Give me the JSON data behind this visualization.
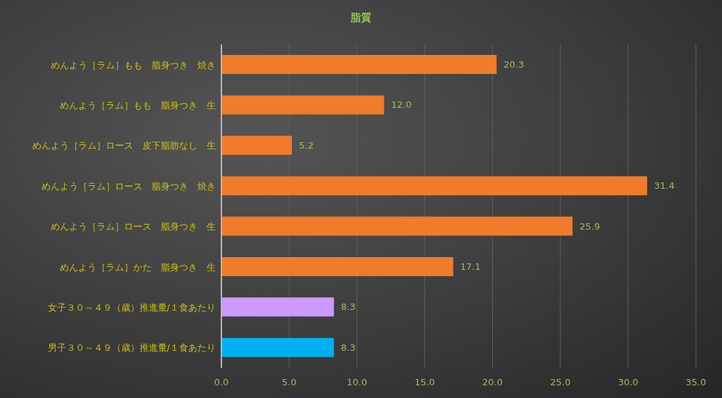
{
  "chart_data": {
    "type": "bar",
    "orientation": "horizontal",
    "title": "脂質",
    "categories": [
      "めんよう［ラム］もも　脂身つき　焼き",
      "めんよう［ラム］もも　脂身つき　生",
      "めんよう［ラム］ロース　皮下脂肪なし　生",
      "めんよう［ラム］ロース　脂身つき　焼き",
      "めんよう［ラム］ロース　脂身つき　生",
      "めんよう［ラム］かた　脂身つき　生",
      "女子３０～４９（歳）推進量/１食あたり",
      "男子３０～４９（歳）推進量/１食あたり"
    ],
    "values": [
      20.3,
      12.0,
      5.2,
      31.4,
      25.9,
      17.1,
      8.3,
      8.3
    ],
    "value_labels": [
      "20.3",
      "12.0",
      "5.2",
      "31.4",
      "25.9",
      "17.1",
      "8.3",
      "8.3"
    ],
    "colors": [
      "#f07b2b",
      "#f07b2b",
      "#f07b2b",
      "#f07b2b",
      "#f07b2b",
      "#f07b2b",
      "#cc99ff",
      "#00b0f0"
    ],
    "xlim": [
      0,
      35
    ],
    "xticks": [
      {
        "value": 0,
        "label": "0.0"
      },
      {
        "value": 5,
        "label": "5.0"
      },
      {
        "value": 10,
        "label": "10.0"
      },
      {
        "value": 15,
        "label": "15.0"
      },
      {
        "value": 20,
        "label": "20.0"
      },
      {
        "value": 25,
        "label": "25.0"
      },
      {
        "value": 30,
        "label": "30.0"
      },
      {
        "value": 35,
        "label": "35.0"
      }
    ],
    "grid": "x",
    "legend": false
  }
}
